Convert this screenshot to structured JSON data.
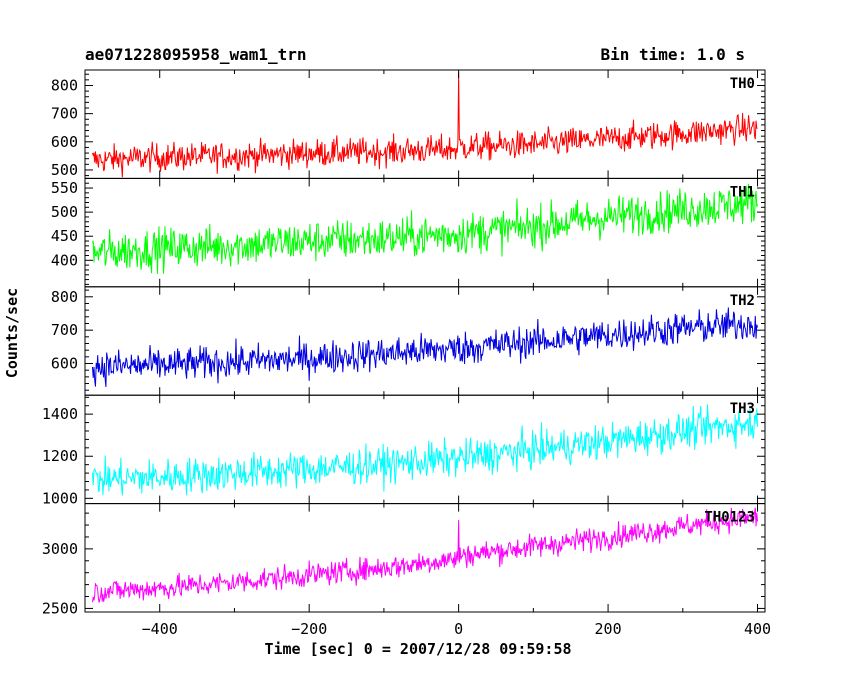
{
  "header": {
    "title": "ae071228095958_wam1_trn",
    "bin_time": "Bin time: 1.0 s"
  },
  "chart_data": {
    "type": "line",
    "xlabel": "Time [sec] 0 = 2007/12/28 09:59:58",
    "ylabel": "Counts/sec",
    "xlim": [
      -500,
      410
    ],
    "x_ticks": [
      -400,
      -200,
      0,
      200,
      400
    ],
    "x_tick_labels": [
      "−400",
      "−200",
      "0",
      "200",
      "400"
    ],
    "grid": false,
    "panels": [
      {
        "name": "TH0",
        "color": "#ff0000",
        "ylim": [
          470,
          855
        ],
        "y_ticks": [
          500,
          600,
          700,
          800
        ],
        "x": [
          -490,
          -400,
          -300,
          -200,
          -100,
          -1,
          0,
          1,
          100,
          200,
          300,
          400
        ],
        "y": [
          535,
          545,
          550,
          560,
          565,
          575,
          850,
          580,
          590,
          610,
          630,
          650
        ],
        "noise": 35
      },
      {
        "name": "TH1",
        "color": "#00ff00",
        "ylim": [
          345,
          570
        ],
        "y_ticks": [
          400,
          450,
          500,
          550
        ],
        "x": [
          -490,
          -400,
          -300,
          -200,
          -100,
          0,
          100,
          200,
          300,
          400
        ],
        "y": [
          415,
          425,
          430,
          440,
          445,
          455,
          470,
          490,
          505,
          520
        ],
        "noise": 30
      },
      {
        "name": "TH2",
        "color": "#0000e0",
        "ylim": [
          505,
          830
        ],
        "y_ticks": [
          600,
          700,
          800
        ],
        "x": [
          -490,
          -400,
          -300,
          -200,
          -100,
          0,
          100,
          200,
          300,
          400
        ],
        "y": [
          590,
          595,
          605,
          615,
          630,
          645,
          665,
          685,
          705,
          720
        ],
        "noise": 35
      },
      {
        "name": "TH3",
        "color": "#00ffff",
        "ylim": [
          975,
          1490
        ],
        "y_ticks": [
          1000,
          1200,
          1400
        ],
        "x": [
          -490,
          -400,
          -300,
          -200,
          -100,
          0,
          100,
          200,
          300,
          400
        ],
        "y": [
          1090,
          1100,
          1120,
          1140,
          1160,
          1190,
          1230,
          1270,
          1320,
          1360
        ],
        "noise": 60
      },
      {
        "name": "TH0123",
        "color": "#ff00ff",
        "ylim": [
          2470,
          3380
        ],
        "y_ticks": [
          2500,
          3000
        ],
        "x": [
          -490,
          -400,
          -300,
          -200,
          -100,
          -1,
          0,
          1,
          100,
          200,
          300,
          400
        ],
        "y": [
          2640,
          2670,
          2720,
          2780,
          2840,
          2920,
          3200,
          2940,
          3020,
          3100,
          3190,
          3270
        ],
        "noise": 70
      }
    ]
  }
}
